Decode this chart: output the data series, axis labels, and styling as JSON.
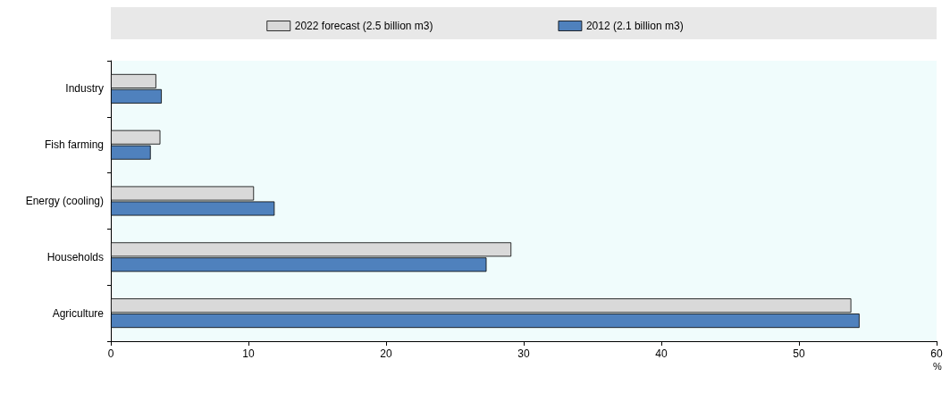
{
  "chart_data": {
    "type": "bar",
    "orientation": "horizontal",
    "xlabel": "%",
    "categories": [
      "Industry",
      "Fish farming",
      "Energy (cooling)",
      "Households",
      "Agriculture"
    ],
    "series": [
      {
        "name": "2022 forecast (2.5 billion m3)",
        "color": "#d9d9d9",
        "values": [
          3.3,
          3.6,
          10.4,
          29.1,
          53.8
        ]
      },
      {
        "name": "2012 (2.1 billion m3)",
        "color": "#4f81bd",
        "values": [
          3.7,
          2.9,
          11.9,
          27.3,
          54.4
        ]
      }
    ],
    "xlim": [
      0,
      60
    ],
    "xticks": [
      0,
      10,
      20,
      30,
      40,
      50,
      60
    ],
    "legend": "top",
    "grid": false
  }
}
